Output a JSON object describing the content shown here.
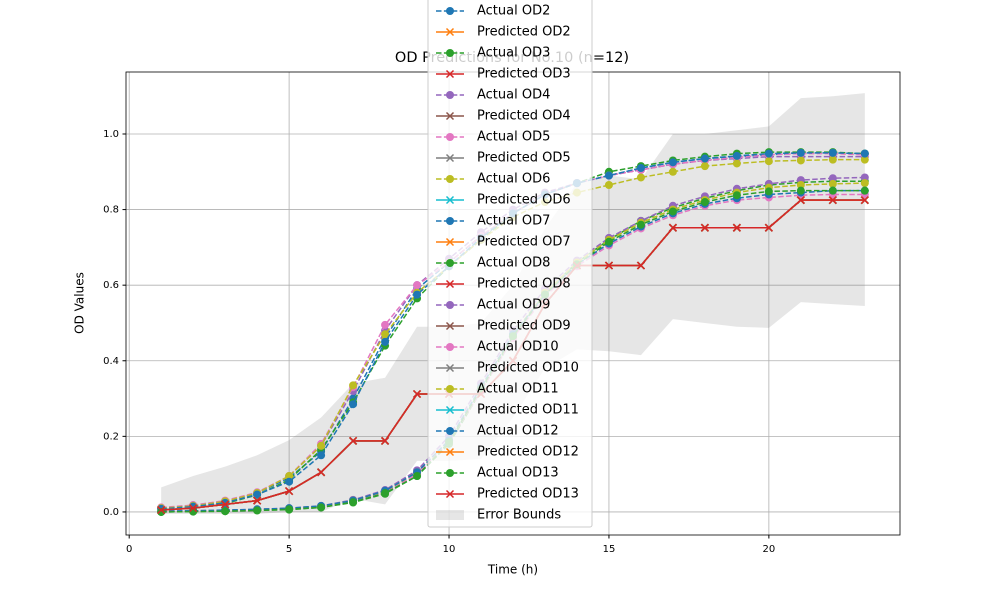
{
  "chart_data": {
    "type": "line",
    "title": "OD Predictions for No.10 (n=12)",
    "xlabel": "Time (h)",
    "ylabel": "OD Values",
    "x": [
      1,
      2,
      3,
      4,
      5,
      6,
      7,
      8,
      9,
      10,
      11,
      12,
      13,
      14,
      15,
      16,
      17,
      18,
      19,
      20,
      21,
      22,
      23
    ],
    "xlim": [
      -0.1,
      24.1
    ],
    "xticks": [
      0,
      5,
      10,
      15,
      20
    ],
    "ylim": [
      -0.061,
      1.164
    ],
    "yticks": [
      {
        "value": 0,
        "label": "0.0"
      },
      0.2,
      0.4,
      0.6,
      0.8,
      {
        "value": 1,
        "label": "1.0"
      }
    ],
    "grid": true,
    "legend": "upper center",
    "series": [
      {
        "name": "Actual OD2",
        "color": "#1f77b4",
        "style": "dashed",
        "marker": "o",
        "values": [
          0.01,
          0.015,
          0.025,
          0.05,
          0.09,
          0.16,
          0.3,
          0.46,
          0.59,
          0.66,
          0.73,
          0.79,
          0.84,
          0.87,
          0.89,
          0.91,
          0.925,
          0.935,
          0.94,
          0.945,
          0.95,
          0.95,
          0.948
        ]
      },
      {
        "name": "Predicted OD2",
        "color": "#ff7f0e",
        "style": "solid",
        "marker": "x",
        "values": [
          0.005,
          0.01,
          0.02,
          0.03,
          0.055,
          0.105,
          0.188,
          0.188,
          0.312,
          0.312,
          0.312,
          0.4,
          0.55,
          0.652,
          0.652,
          0.652,
          0.752,
          0.752,
          0.752,
          0.752,
          0.825,
          0.825,
          0.825
        ]
      },
      {
        "name": "Actual OD3",
        "color": "#2ca02c",
        "style": "dashed",
        "marker": "o",
        "values": [
          0.008,
          0.012,
          0.022,
          0.045,
          0.085,
          0.165,
          0.29,
          0.44,
          0.565,
          0.65,
          0.72,
          0.79,
          0.84,
          0.87,
          0.9,
          0.915,
          0.93,
          0.94,
          0.948,
          0.952,
          0.952,
          0.952,
          0.948
        ]
      },
      {
        "name": "Predicted OD3",
        "color": "#d62728",
        "style": "solid",
        "marker": "x",
        "values": [
          0.005,
          0.01,
          0.02,
          0.03,
          0.055,
          0.105,
          0.188,
          0.188,
          0.312,
          0.312,
          0.312,
          0.4,
          0.55,
          0.652,
          0.652,
          0.652,
          0.752,
          0.752,
          0.752,
          0.752,
          0.825,
          0.825,
          0.825
        ]
      },
      {
        "name": "Actual OD4",
        "color": "#9467bd",
        "style": "dashed",
        "marker": "o",
        "values": [
          0.01,
          0.018,
          0.028,
          0.05,
          0.095,
          0.175,
          0.32,
          0.48,
          0.6,
          0.67,
          0.74,
          0.8,
          0.845,
          0.87,
          0.89,
          0.905,
          0.92,
          0.93,
          0.935,
          0.94,
          0.94,
          0.94,
          0.94
        ]
      },
      {
        "name": "Predicted OD4",
        "color": "#8c564b",
        "style": "solid",
        "marker": "x",
        "values": [
          0.005,
          0.01,
          0.02,
          0.03,
          0.055,
          0.105,
          0.188,
          0.188,
          0.312,
          0.312,
          0.312,
          0.4,
          0.55,
          0.652,
          0.652,
          0.652,
          0.752,
          0.752,
          0.752,
          0.752,
          0.825,
          0.825,
          0.825
        ]
      },
      {
        "name": "Actual OD5",
        "color": "#e377c2",
        "style": "dashed",
        "marker": "o",
        "values": [
          0.012,
          0.018,
          0.03,
          0.052,
          0.095,
          0.18,
          0.33,
          0.495,
          0.6,
          0.66,
          0.73,
          0.79,
          0.84,
          0.87,
          0.89,
          0.905,
          0.92,
          0.93,
          0.938,
          0.945,
          0.948,
          0.948,
          0.945
        ]
      },
      {
        "name": "Predicted OD5",
        "color": "#7f7f7f",
        "style": "solid",
        "marker": "x",
        "values": [
          0.005,
          0.01,
          0.02,
          0.03,
          0.055,
          0.105,
          0.188,
          0.188,
          0.312,
          0.312,
          0.312,
          0.4,
          0.55,
          0.652,
          0.652,
          0.652,
          0.752,
          0.752,
          0.752,
          0.752,
          0.825,
          0.825,
          0.825
        ]
      },
      {
        "name": "Actual OD6",
        "color": "#bcbd22",
        "style": "dashed",
        "marker": "o",
        "values": [
          0.01,
          0.016,
          0.028,
          0.05,
          0.095,
          0.175,
          0.335,
          0.47,
          0.58,
          0.65,
          0.72,
          0.78,
          0.82,
          0.845,
          0.865,
          0.885,
          0.9,
          0.915,
          0.922,
          0.928,
          0.93,
          0.932,
          0.932
        ]
      },
      {
        "name": "Predicted OD6",
        "color": "#17becf",
        "style": "solid",
        "marker": "x",
        "values": [
          0.005,
          0.01,
          0.02,
          0.03,
          0.055,
          0.105,
          0.188,
          0.188,
          0.312,
          0.312,
          0.312,
          0.4,
          0.55,
          0.652,
          0.652,
          0.652,
          0.752,
          0.752,
          0.752,
          0.752,
          0.825,
          0.825,
          0.825
        ]
      },
      {
        "name": "Actual OD7",
        "color": "#1f77b4",
        "style": "dashed",
        "marker": "o",
        "values": [
          0.008,
          0.014,
          0.024,
          0.046,
          0.08,
          0.15,
          0.285,
          0.45,
          0.575,
          0.65,
          0.725,
          0.79,
          0.84,
          0.87,
          0.89,
          0.91,
          0.925,
          0.935,
          0.942,
          0.948,
          0.95,
          0.95,
          0.948
        ]
      },
      {
        "name": "Predicted OD7",
        "color": "#ff7f0e",
        "style": "solid",
        "marker": "x",
        "values": [
          0.005,
          0.01,
          0.02,
          0.03,
          0.055,
          0.105,
          0.188,
          0.188,
          0.312,
          0.312,
          0.312,
          0.4,
          0.55,
          0.652,
          0.652,
          0.652,
          0.752,
          0.752,
          0.752,
          0.752,
          0.825,
          0.825,
          0.825
        ]
      },
      {
        "name": "Actual OD8",
        "color": "#2ca02c",
        "style": "dashed",
        "marker": "o",
        "values": [
          0,
          0.001,
          0.002,
          0.004,
          0.006,
          0.012,
          0.025,
          0.048,
          0.095,
          0.18,
          0.32,
          0.46,
          0.58,
          0.66,
          0.72,
          0.77,
          0.805,
          0.83,
          0.85,
          0.865,
          0.872,
          0.875,
          0.875
        ]
      },
      {
        "name": "Predicted OD8",
        "color": "#d62728",
        "style": "solid",
        "marker": "x",
        "values": [
          0.005,
          0.01,
          0.02,
          0.03,
          0.055,
          0.105,
          0.188,
          0.188,
          0.312,
          0.312,
          0.312,
          0.4,
          0.55,
          0.652,
          0.652,
          0.652,
          0.752,
          0.752,
          0.752,
          0.752,
          0.825,
          0.825,
          0.825
        ]
      },
      {
        "name": "Actual OD9",
        "color": "#9467bd",
        "style": "dashed",
        "marker": "o",
        "values": [
          0.002,
          0.003,
          0.005,
          0.007,
          0.01,
          0.016,
          0.032,
          0.058,
          0.11,
          0.2,
          0.34,
          0.48,
          0.59,
          0.665,
          0.725,
          0.77,
          0.81,
          0.835,
          0.855,
          0.868,
          0.878,
          0.883,
          0.885
        ]
      },
      {
        "name": "Predicted OD9",
        "color": "#8c564b",
        "style": "solid",
        "marker": "x",
        "values": [
          0.005,
          0.01,
          0.02,
          0.03,
          0.055,
          0.105,
          0.188,
          0.188,
          0.312,
          0.312,
          0.312,
          0.4,
          0.55,
          0.652,
          0.652,
          0.652,
          0.752,
          0.752,
          0.752,
          0.752,
          0.825,
          0.825,
          0.825
        ]
      },
      {
        "name": "Actual OD10",
        "color": "#e377c2",
        "style": "dashed",
        "marker": "o",
        "values": [
          0.001,
          0.002,
          0.004,
          0.006,
          0.008,
          0.014,
          0.028,
          0.052,
          0.1,
          0.185,
          0.32,
          0.46,
          0.57,
          0.65,
          0.705,
          0.75,
          0.785,
          0.81,
          0.825,
          0.832,
          0.838,
          0.84,
          0.84
        ]
      },
      {
        "name": "Predicted OD10",
        "color": "#7f7f7f",
        "style": "solid",
        "marker": "x",
        "values": [
          0.005,
          0.01,
          0.02,
          0.03,
          0.055,
          0.105,
          0.188,
          0.188,
          0.312,
          0.312,
          0.312,
          0.4,
          0.55,
          0.652,
          0.652,
          0.652,
          0.752,
          0.752,
          0.752,
          0.752,
          0.825,
          0.825,
          0.825
        ]
      },
      {
        "name": "Actual OD11",
        "color": "#bcbd22",
        "style": "dashed",
        "marker": "o",
        "values": [
          0.001,
          0.002,
          0.004,
          0.006,
          0.009,
          0.015,
          0.03,
          0.055,
          0.105,
          0.19,
          0.33,
          0.47,
          0.58,
          0.66,
          0.72,
          0.765,
          0.8,
          0.825,
          0.845,
          0.858,
          0.865,
          0.868,
          0.87
        ]
      },
      {
        "name": "Predicted OD11",
        "color": "#17becf",
        "style": "solid",
        "marker": "x",
        "values": [
          0.005,
          0.01,
          0.02,
          0.03,
          0.055,
          0.105,
          0.188,
          0.188,
          0.312,
          0.312,
          0.312,
          0.4,
          0.55,
          0.652,
          0.652,
          0.652,
          0.752,
          0.752,
          0.752,
          0.752,
          0.825,
          0.825,
          0.825
        ]
      },
      {
        "name": "Actual OD12",
        "color": "#1f77b4",
        "style": "dashed",
        "marker": "o",
        "values": [
          0.002,
          0.003,
          0.005,
          0.007,
          0.01,
          0.016,
          0.03,
          0.056,
          0.105,
          0.19,
          0.33,
          0.47,
          0.575,
          0.655,
          0.71,
          0.755,
          0.79,
          0.815,
          0.83,
          0.84,
          0.845,
          0.85,
          0.85
        ]
      },
      {
        "name": "Predicted OD12",
        "color": "#ff7f0e",
        "style": "solid",
        "marker": "x",
        "values": [
          0.005,
          0.01,
          0.02,
          0.03,
          0.055,
          0.105,
          0.188,
          0.188,
          0.312,
          0.312,
          0.312,
          0.4,
          0.55,
          0.652,
          0.652,
          0.652,
          0.752,
          0.752,
          0.752,
          0.752,
          0.825,
          0.825,
          0.825
        ]
      },
      {
        "name": "Actual OD13",
        "color": "#2ca02c",
        "style": "dashed",
        "marker": "o",
        "values": [
          0,
          0.001,
          0.002,
          0.004,
          0.007,
          0.012,
          0.026,
          0.05,
          0.095,
          0.185,
          0.325,
          0.465,
          0.575,
          0.655,
          0.715,
          0.76,
          0.795,
          0.82,
          0.838,
          0.848,
          0.85,
          0.85,
          0.85
        ]
      },
      {
        "name": "Predicted OD13",
        "color": "#d62728",
        "style": "solid",
        "marker": "x",
        "values": [
          0.005,
          0.01,
          0.02,
          0.03,
          0.055,
          0.105,
          0.188,
          0.188,
          0.312,
          0.312,
          0.312,
          0.4,
          0.55,
          0.652,
          0.652,
          0.652,
          0.752,
          0.752,
          0.752,
          0.752,
          0.825,
          0.825,
          0.825
        ]
      }
    ],
    "error_bounds": {
      "name": "Error Bounds",
      "color": "#808080",
      "upper": [
        0.065,
        0.095,
        0.12,
        0.15,
        0.19,
        0.25,
        0.34,
        0.355,
        0.49,
        0.49,
        0.5,
        0.6,
        0.75,
        0.87,
        0.89,
        0.88,
        1.0,
        1.0,
        1.01,
        1.02,
        1.095,
        1.1,
        1.108
      ],
      "lower": [
        -0.005,
        -0.005,
        -0.005,
        -0.005,
        0,
        0,
        0.035,
        0.02,
        0.135,
        0.135,
        0.14,
        0.25,
        0.38,
        0.43,
        0.425,
        0.415,
        0.51,
        0.5,
        0.49,
        0.487,
        0.555,
        0.55,
        0.545
      ]
    }
  }
}
